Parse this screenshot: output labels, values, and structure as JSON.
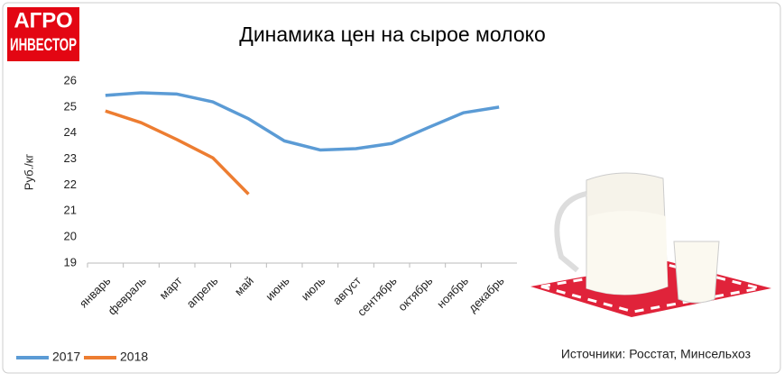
{
  "logo": {
    "line1": "АГРО",
    "line2": "ИНВЕСТОР"
  },
  "chart_data": {
    "type": "line",
    "title": "Динамика цен на сырое молоко",
    "y_label": "Руб./кг",
    "source": "Источники: Росстат, Минсельхоз",
    "categories": [
      "январь",
      "февраль",
      "март",
      "апрель",
      "май",
      "июнь",
      "июль",
      "август",
      "сентябрь",
      "октябрь",
      "ноябрь",
      "декабрь"
    ],
    "series": [
      {
        "name": "2017",
        "color": "#5b9bd5",
        "values": [
          25.45,
          25.55,
          25.5,
          25.2,
          24.55,
          23.7,
          23.35,
          23.4,
          23.6,
          24.2,
          24.78,
          25.0
        ]
      },
      {
        "name": "2018",
        "color": "#ed7d31",
        "values": [
          24.85,
          24.4,
          23.75,
          23.05,
          21.65,
          null,
          null,
          null,
          null,
          null,
          null,
          null
        ]
      }
    ],
    "ylim": [
      19,
      26
    ],
    "yticks": [
      19,
      20,
      21,
      22,
      23,
      24,
      25,
      26
    ],
    "grid": false,
    "legend": "bottom-left"
  }
}
